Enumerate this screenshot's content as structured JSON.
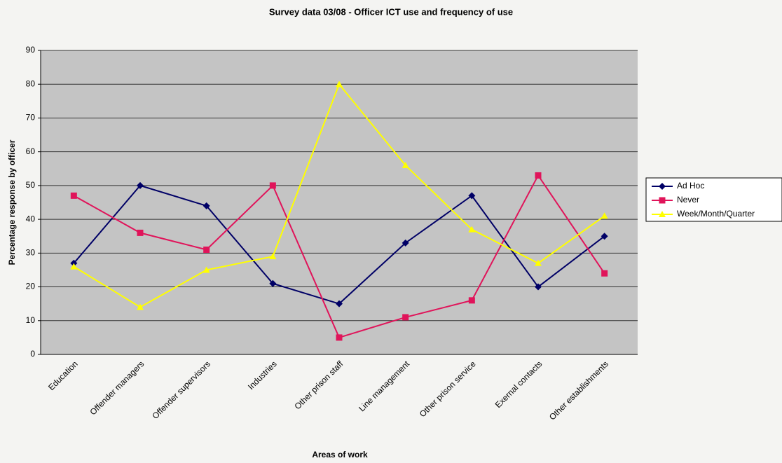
{
  "chart_data": {
    "type": "line",
    "title": "Survey data 03/08 - Officer ICT use and frequency of use",
    "x_label": "Areas of work",
    "y_label": "Percentage response by officer",
    "categories": [
      "Education",
      "Offender managers",
      "Offender supervisors",
      "Industries",
      "Other prison staff",
      "Line management",
      "Other prison service",
      "Exernal contacts",
      "Other establishments"
    ],
    "series": [
      {
        "name": "Ad Hoc",
        "color": "#000066",
        "marker": "diamond",
        "values": [
          27,
          50,
          44,
          21,
          15,
          33,
          47,
          20,
          35
        ]
      },
      {
        "name": "Never",
        "color": "#e0145a",
        "marker": "square",
        "values": [
          47,
          36,
          31,
          50,
          5,
          11,
          16,
          53,
          24
        ]
      },
      {
        "name": "Week/Month/Quarter",
        "color": "#ffff00",
        "marker": "triangle",
        "values": [
          26,
          14,
          25,
          29,
          80,
          56,
          37,
          27,
          41
        ]
      }
    ],
    "ylim": [
      0,
      90
    ],
    "yticks": [
      0,
      10,
      20,
      30,
      40,
      50,
      60,
      70,
      80,
      90
    ],
    "grid": true,
    "legend": "right"
  }
}
